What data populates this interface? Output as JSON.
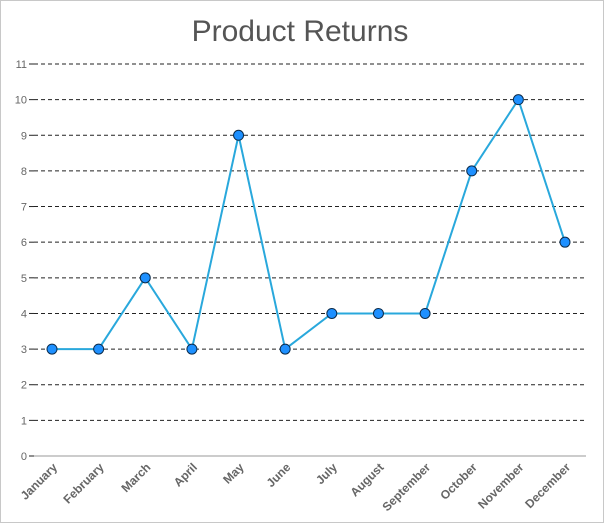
{
  "chart_data": {
    "type": "line",
    "title": "Product Returns",
    "xlabel": "",
    "ylabel": "",
    "categories": [
      "January",
      "February",
      "March",
      "April",
      "May",
      "June",
      "July",
      "August",
      "September",
      "October",
      "November",
      "December"
    ],
    "series": [
      {
        "values": [
          3,
          3,
          5,
          3,
          9,
          3,
          4,
          4,
          4,
          8,
          10,
          6
        ]
      }
    ],
    "ylim": [
      0,
      11
    ],
    "yticks": [
      "0",
      "1",
      "2",
      "3",
      "4",
      "5",
      "6",
      "7",
      "8",
      "9",
      "10",
      "11"
    ],
    "grid": true,
    "legend": "none",
    "colors": {
      "line": "#29a8dc",
      "marker_fill": "#1e90ff",
      "marker_stroke": "#0b2b4a",
      "grid": "#222222",
      "axis": "#cccccc",
      "tick_label": "#666666",
      "title": "#555555"
    }
  }
}
